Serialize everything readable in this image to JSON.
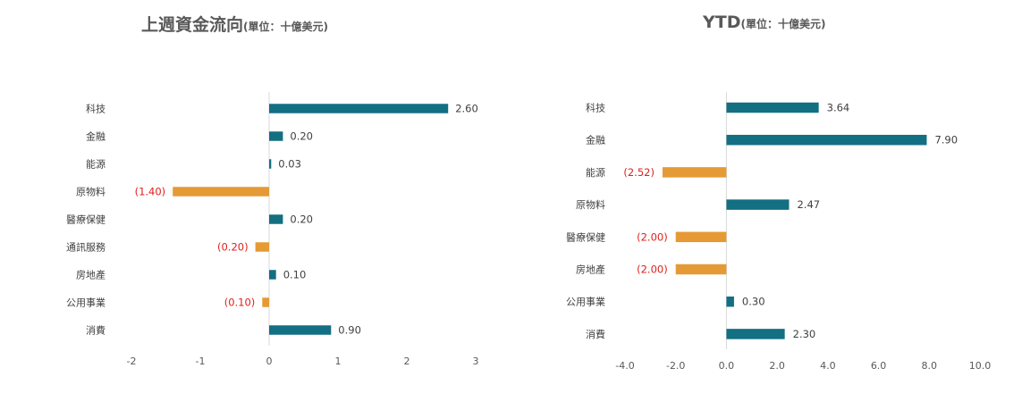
{
  "colors": {
    "positive": "#136f82",
    "negative": "#e59a35",
    "negative_label": "#e0201c",
    "axis": "#d9d9d9"
  },
  "chart_data": [
    {
      "type": "bar",
      "orientation": "horizontal",
      "title": "上週資金流向",
      "title_unit": "(單位：十億美元)",
      "categories": [
        "科技",
        "金融",
        "能源",
        "原物料",
        "醫療保健",
        "通訊服務",
        "房地產",
        "公用事業",
        "消費"
      ],
      "values": [
        2.6,
        0.2,
        0.03,
        -1.4,
        0.2,
        -0.2,
        0.1,
        -0.1,
        0.9
      ],
      "value_labels": [
        "2.60",
        "0.20",
        "0.03",
        "(1.40)",
        "0.20",
        "(0.20)",
        "0.10",
        "(0.10)",
        "0.90"
      ],
      "xlim": [
        -2,
        3
      ],
      "xticks": [
        -2,
        -1,
        0,
        1,
        2,
        3
      ],
      "xtick_labels": [
        "-2",
        "-1",
        "0",
        "1",
        "2",
        "3"
      ],
      "grid": false,
      "legend": "none"
    },
    {
      "type": "bar",
      "orientation": "horizontal",
      "title": "YTD",
      "title_unit": "(單位：十億美元)",
      "categories": [
        "科技",
        "金融",
        "能源",
        "原物料",
        "醫療保健",
        "房地產",
        "公用事業",
        "消費"
      ],
      "values": [
        3.64,
        7.9,
        -2.52,
        2.47,
        -2.0,
        -2.0,
        0.3,
        2.3
      ],
      "value_labels": [
        "3.64",
        "7.90",
        "(2.52)",
        "2.47",
        "(2.00)",
        "(2.00)",
        "0.30",
        "2.30"
      ],
      "xlim": [
        -4,
        10
      ],
      "xticks": [
        -4,
        -2,
        0,
        2,
        4,
        6,
        8,
        10
      ],
      "xtick_labels": [
        "-4.0",
        "-2.0",
        "0.0",
        "2.0",
        "4.0",
        "6.0",
        "8.0",
        "10.0"
      ],
      "grid": false,
      "legend": "none"
    }
  ]
}
